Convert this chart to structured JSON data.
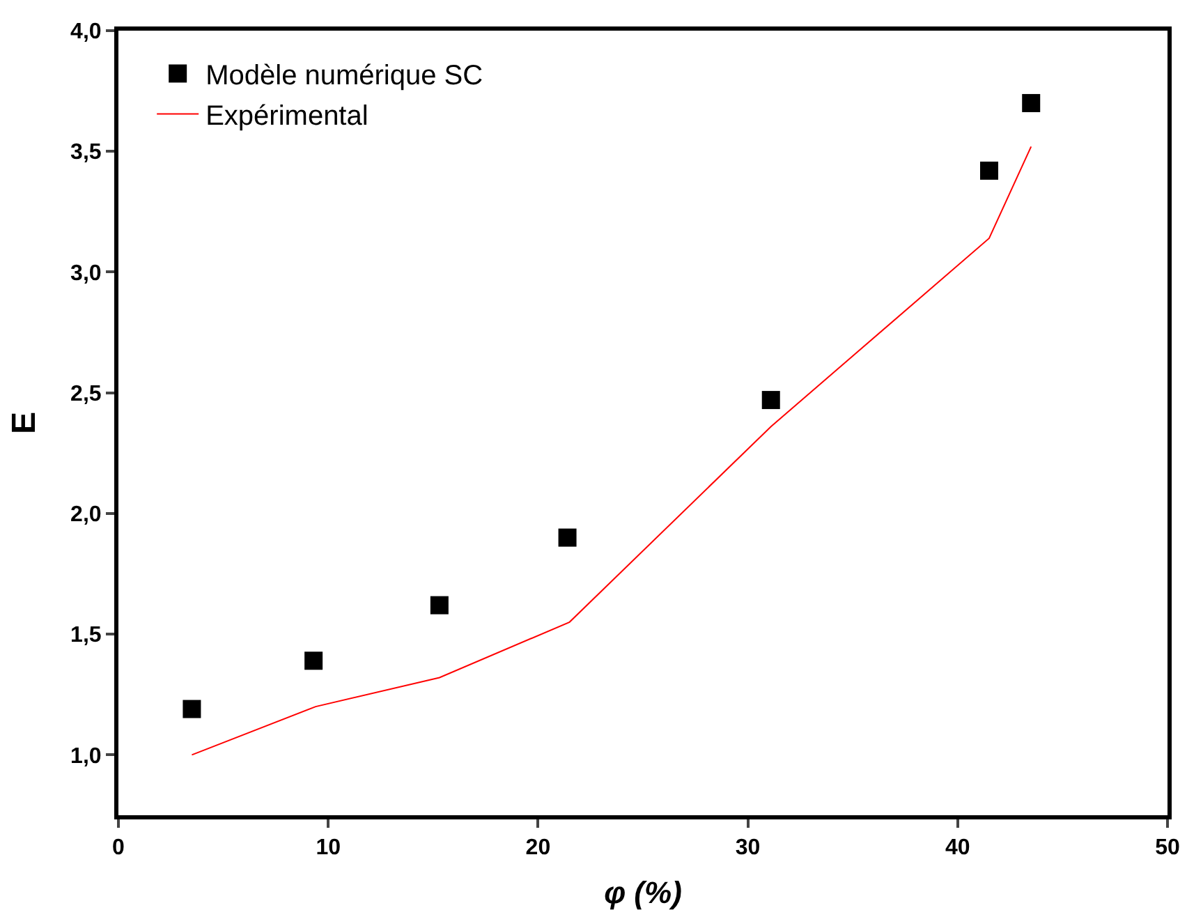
{
  "chart_data": {
    "type": "scatter",
    "xlabel": "φ (%)",
    "ylabel": "E",
    "xlim": [
      0,
      50
    ],
    "xticks": [
      0,
      10,
      20,
      30,
      40,
      50
    ],
    "ylim": [
      0.75,
      4.0
    ],
    "yticks": [
      {
        "value": 1,
        "label": "1,0"
      },
      {
        "value": 1.5,
        "label": "1,5"
      },
      {
        "value": 2,
        "label": "2,0"
      },
      {
        "value": 2.5,
        "label": "2,5"
      },
      {
        "value": 3,
        "label": "3,0"
      },
      {
        "value": 3.5,
        "label": "3,5"
      },
      {
        "value": 4,
        "label": "4,0"
      }
    ],
    "grid": false,
    "legend": "top left",
    "series": [
      {
        "name": "Modèle numérique SC",
        "marker": "square",
        "color": "#000000",
        "x": [
          3.5,
          9.3,
          15.3,
          21.4,
          31.1,
          41.5,
          43.5
        ],
        "values": [
          1.19,
          1.39,
          1.62,
          1.9,
          2.47,
          3.42,
          3.7
        ]
      },
      {
        "name": "Expérimental",
        "type": "line",
        "marker": "none",
        "line_style": "solid",
        "color": "#ff0000",
        "x": [
          3.5,
          9.4,
          15.3,
          21.5,
          31.1,
          41.5,
          43.5
        ],
        "values": [
          1.0,
          1.2,
          1.32,
          1.55,
          2.36,
          3.14,
          3.52
        ]
      }
    ]
  }
}
